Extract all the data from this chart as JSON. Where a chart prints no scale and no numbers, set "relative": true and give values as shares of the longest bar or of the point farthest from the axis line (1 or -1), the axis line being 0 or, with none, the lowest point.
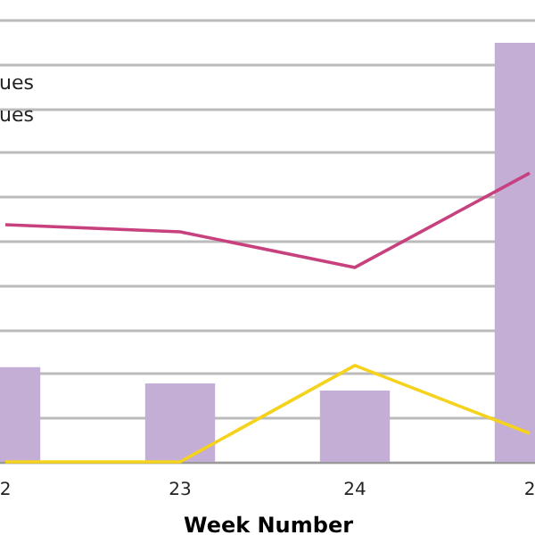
{
  "chart_data": {
    "type": "bar",
    "relative": true,
    "xlabel": "Week Number",
    "grid": "y",
    "annotations": [
      "ues",
      "ues"
    ],
    "categories": [
      "2",
      "23",
      "24",
      "2"
    ],
    "series": [
      {
        "color": "#c4aed6",
        "values": [
          0.226,
          0.187,
          0.17,
          1
        ]
      },
      {
        "type": "line",
        "color": "#c8417f",
        "values": [
          0.566,
          0.549,
          0.464,
          0.689
        ]
      },
      {
        "type": "line",
        "color": "#f5d21c",
        "values": [
          0,
          0,
          0.23,
          0.068
        ]
      }
    ]
  }
}
